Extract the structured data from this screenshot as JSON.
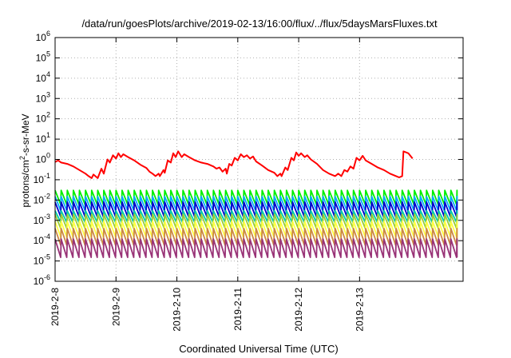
{
  "chart_data": {
    "type": "line",
    "title": "/data/run/goesPlots/archive/2019-02-13/16:00/flux/../flux/5daysMarsFluxes.txt",
    "xlabel": "Coordinated Universal Time (UTC)",
    "ylabel_parts": {
      "pre": "protons/cm",
      "sup": "2",
      "post": "-s-sr-MeV"
    },
    "yscale": "log",
    "ylim_exp": [
      -6,
      6
    ],
    "xlim_days": [
      0,
      6.7
    ],
    "x_ticks": [
      {
        "label": "2019-2-8",
        "day": 0
      },
      {
        "label": "2019-2-9",
        "day": 1
      },
      {
        "label": "2019-2-10",
        "day": 2
      },
      {
        "label": "2019-2-11",
        "day": 3
      },
      {
        "label": "2019-2-12",
        "day": 4
      },
      {
        "label": "2019-2-13",
        "day": 5
      }
    ],
    "grid": true,
    "series": [
      {
        "color": "#ff0000",
        "points": [
          [
            0,
            0.75
          ],
          [
            0.05,
            0.9
          ],
          [
            0.1,
            0.7
          ],
          [
            0.2,
            0.6
          ],
          [
            0.3,
            0.45
          ],
          [
            0.4,
            0.3
          ],
          [
            0.5,
            0.2
          ],
          [
            0.55,
            0.15
          ],
          [
            0.6,
            0.12
          ],
          [
            0.63,
            0.18
          ],
          [
            0.7,
            0.12
          ],
          [
            0.76,
            0.35
          ],
          [
            0.8,
            0.2
          ],
          [
            0.86,
            1.0
          ],
          [
            0.9,
            0.7
          ],
          [
            0.95,
            1.6
          ],
          [
            1.0,
            1.1
          ],
          [
            1.04,
            2.0
          ],
          [
            1.08,
            1.3
          ],
          [
            1.12,
            1.8
          ],
          [
            1.2,
            1.3
          ],
          [
            1.3,
            0.9
          ],
          [
            1.4,
            0.55
          ],
          [
            1.5,
            0.38
          ],
          [
            1.55,
            0.25
          ],
          [
            1.6,
            0.2
          ],
          [
            1.65,
            0.15
          ],
          [
            1.7,
            0.2
          ],
          [
            1.72,
            0.15
          ],
          [
            1.78,
            0.3
          ],
          [
            1.8,
            0.22
          ],
          [
            1.85,
            0.9
          ],
          [
            1.9,
            0.7
          ],
          [
            1.94,
            2.0
          ],
          [
            1.98,
            1.3
          ],
          [
            2.02,
            2.5
          ],
          [
            2.08,
            1.3
          ],
          [
            2.12,
            1.8
          ],
          [
            2.2,
            1.3
          ],
          [
            2.3,
            0.9
          ],
          [
            2.4,
            0.7
          ],
          [
            2.5,
            0.6
          ],
          [
            2.6,
            0.45
          ],
          [
            2.65,
            0.35
          ],
          [
            2.7,
            0.4
          ],
          [
            2.75,
            0.25
          ],
          [
            2.8,
            0.35
          ],
          [
            2.82,
            0.2
          ],
          [
            2.86,
            0.6
          ],
          [
            2.9,
            0.5
          ],
          [
            2.95,
            1.2
          ],
          [
            3.0,
            0.9
          ],
          [
            3.05,
            1.8
          ],
          [
            3.1,
            1.3
          ],
          [
            3.15,
            1.6
          ],
          [
            3.2,
            1.1
          ],
          [
            3.25,
            1.4
          ],
          [
            3.3,
            0.8
          ],
          [
            3.4,
            0.5
          ],
          [
            3.5,
            0.3
          ],
          [
            3.6,
            0.22
          ],
          [
            3.65,
            0.15
          ],
          [
            3.7,
            0.2
          ],
          [
            3.72,
            0.15
          ],
          [
            3.78,
            0.4
          ],
          [
            3.82,
            0.3
          ],
          [
            3.88,
            1.2
          ],
          [
            3.92,
            0.9
          ],
          [
            3.96,
            2.2
          ],
          [
            4.0,
            1.5
          ],
          [
            4.04,
            2.0
          ],
          [
            4.1,
            1.3
          ],
          [
            4.14,
            1.6
          ],
          [
            4.2,
            1.0
          ],
          [
            4.3,
            0.6
          ],
          [
            4.4,
            0.3
          ],
          [
            4.5,
            0.2
          ],
          [
            4.6,
            0.15
          ],
          [
            4.65,
            0.2
          ],
          [
            4.7,
            0.15
          ],
          [
            4.75,
            0.3
          ],
          [
            4.8,
            0.25
          ],
          [
            4.85,
            0.45
          ],
          [
            4.9,
            0.35
          ],
          [
            4.95,
            1.2
          ],
          [
            5.0,
            0.9
          ],
          [
            5.05,
            1.5
          ],
          [
            5.1,
            0.9
          ],
          [
            5.2,
            0.6
          ],
          [
            5.3,
            0.4
          ],
          [
            5.4,
            0.3
          ],
          [
            5.5,
            0.2
          ],
          [
            5.6,
            0.15
          ],
          [
            5.65,
            0.13
          ],
          [
            5.7,
            0.15
          ],
          [
            5.72,
            2.5
          ],
          [
            5.8,
            2.0
          ],
          [
            5.87,
            1.1
          ]
        ]
      },
      {
        "color": "#00ee00",
        "base": 0.006,
        "peak": 0.03
      },
      {
        "color": "#00aaff",
        "base": 0.003,
        "peak": 0.015
      },
      {
        "color": "#0000cc",
        "base": 0.0015,
        "peak": 0.008
      },
      {
        "color": "#00ccaa",
        "base": 0.0008,
        "peak": 0.003
      },
      {
        "color": "#99cc33",
        "base": 0.0004,
        "peak": 0.002
      },
      {
        "color": "#ffff44",
        "base": 0.00015,
        "peak": 0.0009
      },
      {
        "color": "#cc8844",
        "base": 6e-05,
        "peak": 0.0004
      },
      {
        "color": "#993377",
        "base": 1.5e-05,
        "peak": 0.00012
      }
    ]
  }
}
